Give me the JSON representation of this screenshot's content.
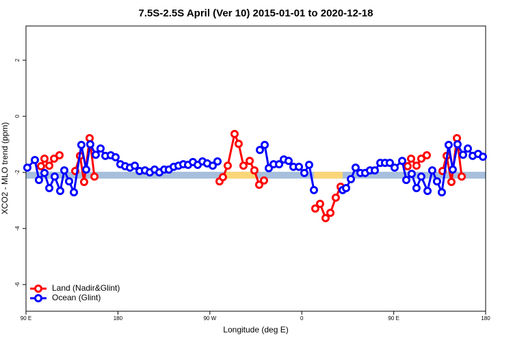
{
  "chart_data": {
    "type": "line",
    "title": "7.5S-2.5S April (Ver 10)   2015-01-01 to 2020-12-18",
    "xlabel": "Longitude (deg E)",
    "ylabel": "XCO2 - MLO trend (ppm)",
    "xlim": [
      90,
      540
    ],
    "ylim": [
      -6.95,
      3.22
    ],
    "xticks": [
      {
        "value": 90,
        "label": "90 E"
      },
      180,
      {
        "value": 270,
        "label": "90 W"
      },
      {
        "value": 360,
        "label": "0"
      },
      {
        "value": 450,
        "label": "90 E"
      },
      {
        "value": 540,
        "label": "180"
      }
    ],
    "yticks": [
      2,
      0,
      -2,
      -4,
      -6
    ],
    "legend": "bottom-left",
    "band": {
      "value": -2.1,
      "color": "#a7bfdc",
      "land_color": "#fbd679",
      "land_ranges": [
        [
          285,
          316
        ],
        [
          372,
          400
        ]
      ]
    },
    "series": [
      {
        "name": "Land (Nadir&Glint)",
        "color": "#ff0000",
        "x": [
          104.7,
          108.1,
          112.8,
          117.5,
          122.8,
          null,
          138.2,
          142.9,
          146.9,
          152.3,
          157.0,
          null,
          279.5,
          282.8,
          287.5,
          294.2,
          298.2,
          302.9,
          309.0,
          313.6,
          318.3,
          323.0,
          null,
          373.2,
          377.9,
          383.3,
          388.0,
          393.3,
          398.0,
          null,
          463.6,
          467.0,
          472.3,
          477.0,
          482.4,
          null,
          497.8,
          501.8,
          506.5,
          511.9,
          516.6
        ],
        "values": [
          -1.78,
          -1.51,
          -1.76,
          -1.51,
          -1.39,
          null,
          -1.95,
          -1.41,
          -2.34,
          -0.78,
          -2.15,
          null,
          -2.32,
          -2.17,
          -1.76,
          -0.63,
          -0.98,
          -1.76,
          -1.59,
          -1.93,
          -2.44,
          -2.29,
          null,
          -3.29,
          -3.12,
          -3.63,
          -3.44,
          -2.9,
          -2.51,
          null,
          -1.78,
          -1.51,
          -1.76,
          -1.51,
          -1.39,
          null,
          -1.95,
          -1.41,
          -2.34,
          -0.78,
          -2.15
        ]
      },
      {
        "name": "Ocean (Glint)",
        "color": "#0000ff",
        "x": [
          91.3,
          98.7,
          102.7,
          108.1,
          112.8,
          118.1,
          123.5,
          127.5,
          132.2,
          136.9,
          144.2,
          148.9,
          152.9,
          158.3,
          163.0,
          167.7,
          173.0,
          177.7,
          182.4,
          187.1,
          191.8,
          196.5,
          201.2,
          206.5,
          211.2,
          215.9,
          220.6,
          225.3,
          229.9,
          234.6,
          239.3,
          244.0,
          248.7,
          253.4,
          258.1,
          262.8,
          267.4,
          272.8,
          277.5,
          null,
          319.0,
          323.7,
          327.7,
          332.4,
          337.8,
          342.4,
          347.1,
          351.8,
          357.2,
          362.5,
          367.2,
          371.9,
          null,
          400.0,
          403.4,
          408.1,
          412.7,
          417.4,
          422.1,
          426.8,
          431.5,
          436.9,
          441.5,
          446.2,
          450.9,
          458.3,
          462.3,
          467.6,
          472.3,
          477.0,
          483.1,
          487.7,
          492.4,
          497.1,
          503.8,
          507.8,
          512.5,
          517.9,
          522.6,
          527.3,
          532.6,
          537.3
        ],
        "values": [
          -1.83,
          -1.56,
          -2.27,
          -2.02,
          -2.56,
          -2.15,
          -2.66,
          -1.93,
          -2.32,
          -2.71,
          -1.02,
          -1.9,
          -1.0,
          -1.37,
          -1.15,
          -1.41,
          -1.39,
          -1.46,
          -1.71,
          -1.78,
          -1.83,
          -1.76,
          -1.95,
          -1.93,
          -2.0,
          -1.9,
          -2.0,
          -1.9,
          -1.9,
          -1.8,
          -1.76,
          -1.71,
          -1.73,
          -1.63,
          -1.73,
          -1.61,
          -1.68,
          -1.76,
          -1.61,
          null,
          -1.2,
          -1.02,
          -1.85,
          -1.71,
          -1.71,
          -1.54,
          -1.59,
          -1.8,
          -1.8,
          -2.02,
          -1.73,
          -2.63,
          null,
          -2.63,
          -2.56,
          -2.24,
          -1.83,
          -2.02,
          -2.02,
          -1.93,
          -1.93,
          -1.66,
          -1.66,
          -1.66,
          -1.83,
          -1.59,
          -2.27,
          -2.05,
          -2.56,
          -2.15,
          -2.66,
          -1.93,
          -2.32,
          -2.71,
          -1.02,
          -1.9,
          -1.0,
          -1.37,
          -1.15,
          -1.41,
          -1.34,
          -1.44
        ]
      }
    ]
  }
}
